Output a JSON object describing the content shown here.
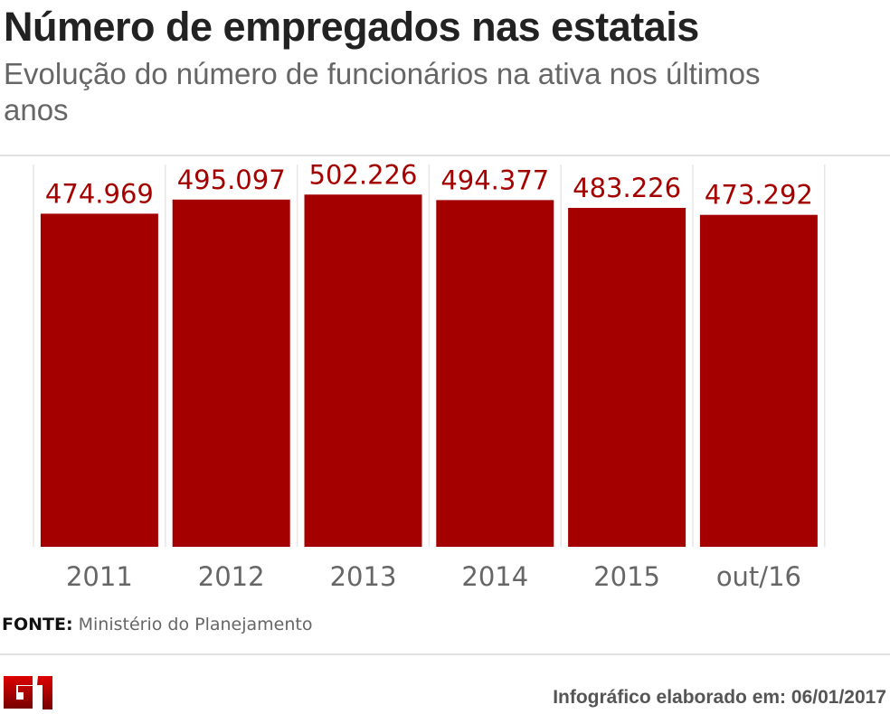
{
  "chart_data": {
    "type": "bar",
    "title": "Número de empregados nas estatais",
    "subtitle": "Evolução do número de funcionários na ativa nos últimos anos",
    "categories": [
      "2011",
      "2012",
      "2013",
      "2014",
      "2015",
      "out/16"
    ],
    "values": [
      474969,
      495097,
      502226,
      494377,
      483226,
      473292
    ],
    "data_labels": [
      "474.969",
      "495.097",
      "502.226",
      "494.377",
      "483.226",
      "473.292"
    ],
    "ylim": [
      0,
      560000
    ],
    "grid": false,
    "bar_color": "#a50000",
    "label_color": "#a50000"
  },
  "source": {
    "label": "FONTE:",
    "text": "Ministério do Planejamento"
  },
  "credit": "Infográfico elaborado em: 06/01/2017",
  "logo": "G1"
}
